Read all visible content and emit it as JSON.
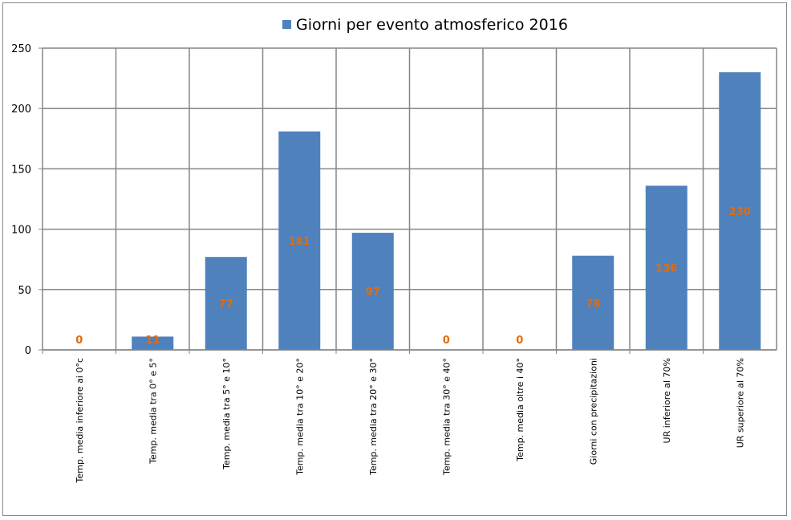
{
  "chart_data": {
    "type": "bar",
    "legend": {
      "label": "Giorni per evento atmosferico 2016",
      "placement": "top"
    },
    "categories": [
      "Temp. media inferiore ai 0°c",
      "Temp. media tra 0° e 5°",
      "Temp. media tra 5° e 10°",
      "Temp. media tra 10° e 20°",
      "Temp. media tra 20° e 30°",
      "Temp. media tra 30° e 40°",
      "Temp. media oltre i 40°",
      "Giorni con precipitazioni",
      "UR inferiore al 70%",
      "UR superiore al 70%"
    ],
    "series": [
      {
        "name": "Giorni per evento atmosferico 2016",
        "values": [
          0,
          11,
          77,
          181,
          97,
          0,
          0,
          78,
          136,
          230
        ]
      }
    ],
    "data_labels": [
      "0",
      "11",
      "77",
      "181",
      "97",
      "0",
      "0",
      "78",
      "136",
      "230"
    ],
    "yticks": [
      "0",
      "50",
      "100",
      "150",
      "200",
      "250"
    ],
    "ylim": [
      0,
      250
    ],
    "grid": true,
    "colors": {
      "bar": "#4F81BD",
      "label": "#E36C0A",
      "grid": "#868686",
      "axis": "#868686",
      "frame": "#868686"
    }
  }
}
